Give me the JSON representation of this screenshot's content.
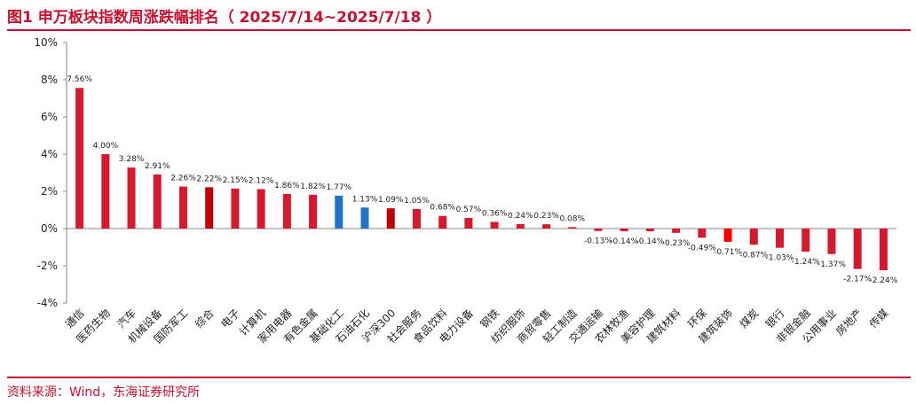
{
  "header": {
    "title": "图1  申万板块指数周涨跌幅排名（ 2025/7/14~2025/7/18 ）"
  },
  "footer": {
    "source": "资料来源：Wind，东海证券研究所"
  },
  "colors": {
    "accent": "#c8102e",
    "bar_default": "#d7192e",
    "bar_dark": "#c00000",
    "bar_blue": "#1f74c6",
    "bar_bright": "#ff0000"
  },
  "chart_data": {
    "type": "bar",
    "title": "",
    "xlabel": "",
    "ylabel": "",
    "ylim": [
      -4,
      10
    ],
    "yticks": [
      -4,
      -2,
      0,
      2,
      4,
      6,
      8,
      10
    ],
    "ytick_labels": [
      "-4%",
      "-2%",
      "0%",
      "2%",
      "4%",
      "6%",
      "8%",
      "10%"
    ],
    "grid": false,
    "categories": [
      "通信",
      "医药生物",
      "汽车",
      "机械设备",
      "国防军工",
      "综合",
      "电子",
      "计算机",
      "家用电器",
      "有色金属",
      "基础化工",
      "石油石化",
      "沪深300",
      "社会服务",
      "食品饮料",
      "电力设备",
      "钢铁",
      "纺织服饰",
      "商贸零售",
      "轻工制造",
      "交通运输",
      "农林牧渔",
      "美容护理",
      "建筑材料",
      "环保",
      "建筑装饰",
      "煤炭",
      "银行",
      "非银金融",
      "公用事业",
      "房地产",
      "传媒"
    ],
    "values": [
      7.56,
      4.0,
      3.28,
      2.91,
      2.26,
      2.22,
      2.15,
      2.12,
      1.86,
      1.82,
      1.77,
      1.13,
      1.09,
      1.05,
      0.68,
      0.57,
      0.36,
      0.24,
      0.23,
      0.08,
      -0.13,
      -0.14,
      -0.14,
      -0.23,
      -0.49,
      -0.71,
      -0.87,
      -1.03,
      -1.24,
      -1.37,
      -2.17,
      -2.24
    ],
    "labels": [
      "7.56%",
      "4.00%",
      "3.28%",
      "2.91%",
      "2.26%",
      "2.22%",
      "2.15%",
      "2.12%",
      "1.86%",
      "1.82%",
      "1.77%",
      "1.13%",
      "1.09%",
      "1.05%",
      "0.68%",
      "0.57%",
      "0.36%",
      "0.24%",
      "0.23%",
      "0.08%",
      "-0.13%",
      "-0.14%",
      "-0.14%",
      "-0.23%",
      "-0.49%",
      "-0.71%",
      "-0.87%",
      "-1.03%",
      "-1.24%",
      "-1.37%",
      "-2.17%",
      "-2.24%"
    ],
    "highlight": {
      "dark": [
        "综合",
        "沪深300"
      ],
      "blue": [
        "基础化工",
        "石油石化"
      ],
      "bright": [
        "建筑装饰"
      ]
    }
  }
}
